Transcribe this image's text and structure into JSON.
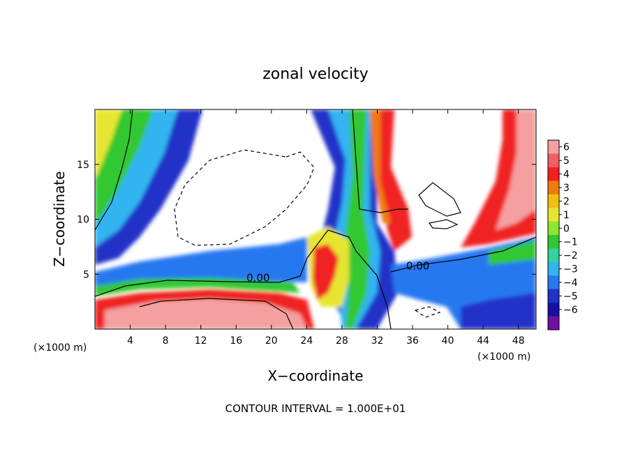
{
  "chart_data": {
    "type": "heatmap",
    "title": "zonal velocity",
    "xlabel": "X−coordinate",
    "ylabel": "Z−coordinate",
    "x_unit_label": "(×1000 m)",
    "x_unit_label_right": "(×1000 m)",
    "footer": "CONTOUR INTERVAL = 1.000E+01",
    "xlim": [
      0,
      50
    ],
    "ylim": [
      0,
      20
    ],
    "x_ticks": [
      4,
      8,
      12,
      16,
      20,
      24,
      28,
      32,
      36,
      40,
      44,
      48
    ],
    "y_ticks": [
      5,
      10,
      15
    ],
    "colorbar": {
      "levels": [
        6,
        5,
        4,
        3,
        2,
        1,
        0,
        -1,
        -2,
        -3,
        -4,
        -5,
        -6
      ],
      "tick_labels": [
        "6",
        "5",
        "4",
        "3",
        "2",
        "1",
        "0",
        "−1",
        "−2",
        "−3",
        "−4",
        "−5",
        "−6"
      ],
      "colors": [
        "#f4a0a0",
        "#f06060",
        "#f02020",
        "#f07a10",
        "#f0c010",
        "#e6e632",
        "#8ce632",
        "#32c832",
        "#32d2a0",
        "#32b4f0",
        "#2878f0",
        "#2030c8",
        "#1810a0",
        "#7010a0"
      ]
    },
    "contour_labels": [
      {
        "text": "0.00",
        "x": 18.5,
        "y": 4.4
      },
      {
        "text": "0.00",
        "x": 36.6,
        "y": 5.5
      }
    ],
    "grid": false,
    "legend": "colorbar-right"
  }
}
